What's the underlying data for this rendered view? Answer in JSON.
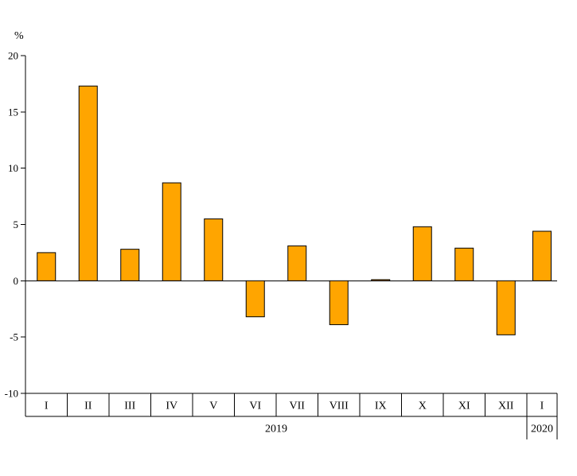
{
  "chart_data": {
    "type": "bar",
    "title": "",
    "ylabel": "%",
    "categories": [
      "I",
      "II",
      "III",
      "IV",
      "V",
      "VI",
      "VII",
      "VIII",
      "IX",
      "X",
      "XI",
      "XII",
      "I"
    ],
    "values": [
      2.5,
      17.3,
      2.8,
      8.7,
      5.5,
      -3.2,
      3.1,
      -3.9,
      0.1,
      4.8,
      2.9,
      -4.8,
      4.4
    ],
    "year_groups": [
      {
        "label": "2019",
        "start": 0,
        "end": 11
      },
      {
        "label": "2020",
        "start": 12,
        "end": 12
      }
    ],
    "yticks": [
      20,
      15,
      10,
      5,
      0,
      -5,
      -10
    ],
    "ylim": [
      -10,
      20
    ],
    "grid": false,
    "legend": "none",
    "bar_color": "#FFA500",
    "bar_border": "#000000",
    "axis_color": "#000000"
  }
}
